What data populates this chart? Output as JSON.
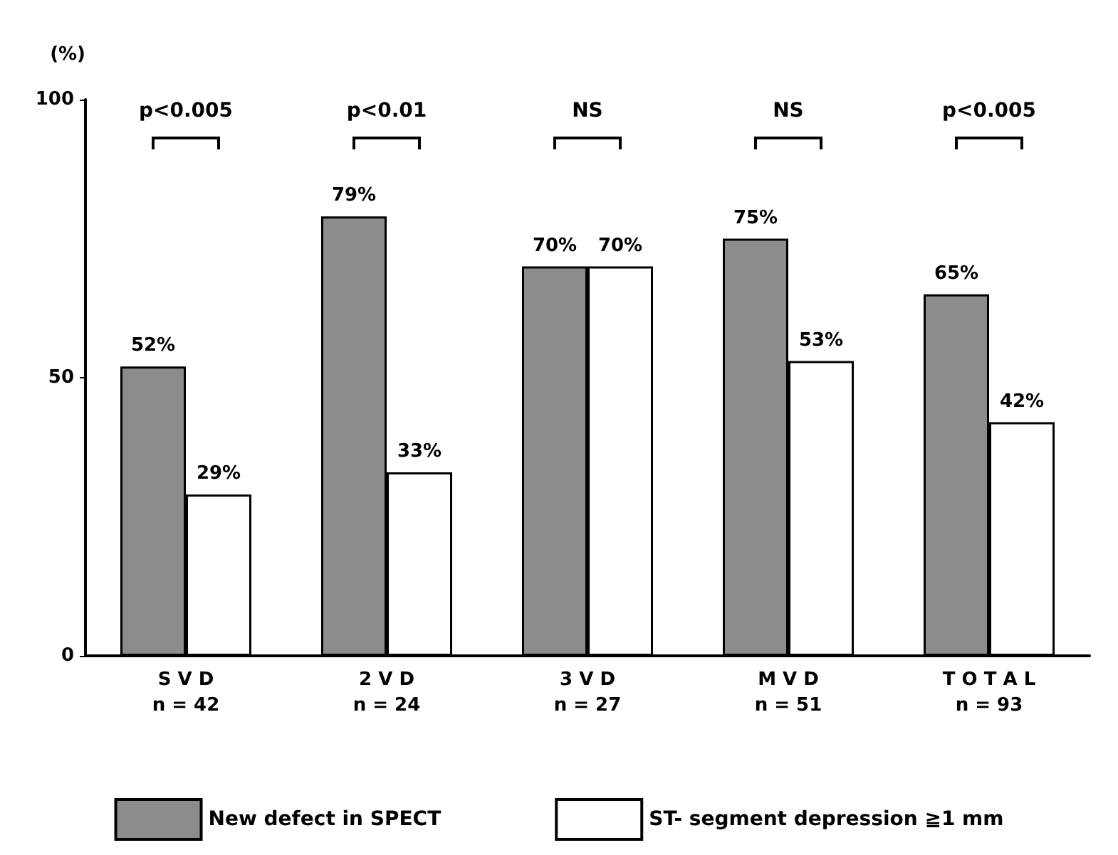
{
  "chart_data": {
    "type": "bar",
    "ylabel": "(%)",
    "categories": [
      "S V D\nn = 42",
      "2 V D\nn = 24",
      "3 V D\nn = 27",
      "M V D\nn = 51",
      "T O T A L\nn = 93"
    ],
    "series": [
      {
        "name": "New defect in SPECT",
        "color": "#8c8c8c",
        "values": [
          52,
          79,
          70,
          75,
          65
        ],
        "value_labels": [
          "52%",
          "79%",
          "70%",
          "75%",
          "65%"
        ]
      },
      {
        "name": "ST- segment depression ≧1 mm",
        "color": "#ffffff",
        "values": [
          29,
          33,
          70,
          53,
          42
        ],
        "value_labels": [
          "29%",
          "33%",
          "70%",
          "53%",
          "42%"
        ]
      }
    ],
    "ylim": [
      0,
      100
    ],
    "yticks": [
      0,
      50,
      100
    ],
    "grid": false,
    "legend": "bottom",
    "annotations": [
      "p<0.005",
      "p<0.01",
      "NS",
      "NS",
      "p<0.005"
    ]
  }
}
